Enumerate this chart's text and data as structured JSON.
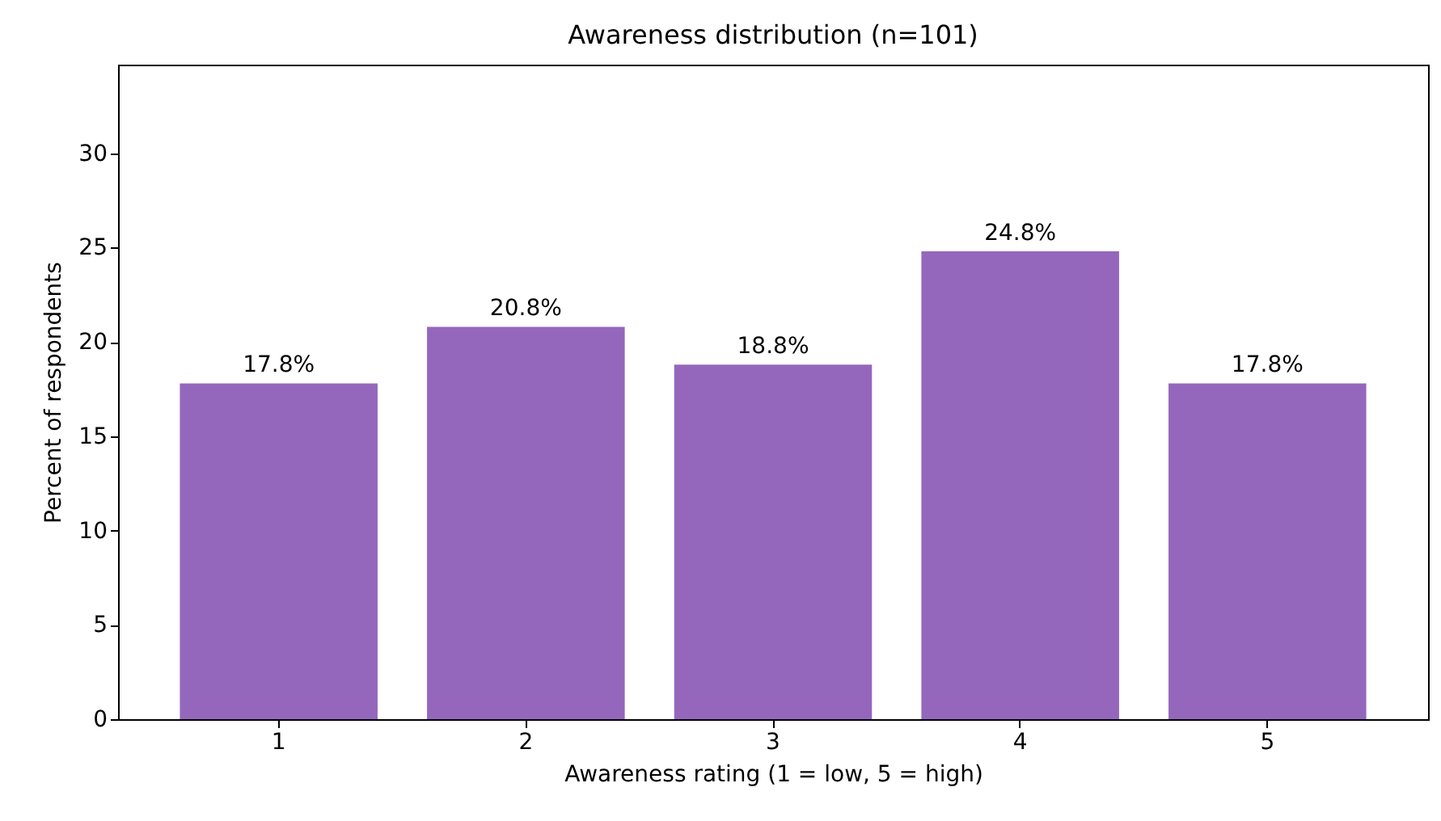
{
  "chart_data": {
    "type": "bar",
    "title": "Awareness distribution (n=101)",
    "xlabel": "Awareness rating (1 = low, 5 = high)",
    "ylabel": "Percent of respondents",
    "categories": [
      "1",
      "2",
      "3",
      "4",
      "5"
    ],
    "values": [
      17.8,
      20.8,
      18.8,
      24.8,
      17.8
    ],
    "value_labels": [
      "17.8%",
      "20.8%",
      "18.8%",
      "24.8%",
      "17.8%"
    ],
    "color": "#9467bd",
    "ylim": [
      0,
      34.7
    ],
    "yticks": [
      0,
      5,
      10,
      15,
      20,
      25,
      30
    ],
    "grid": false
  }
}
